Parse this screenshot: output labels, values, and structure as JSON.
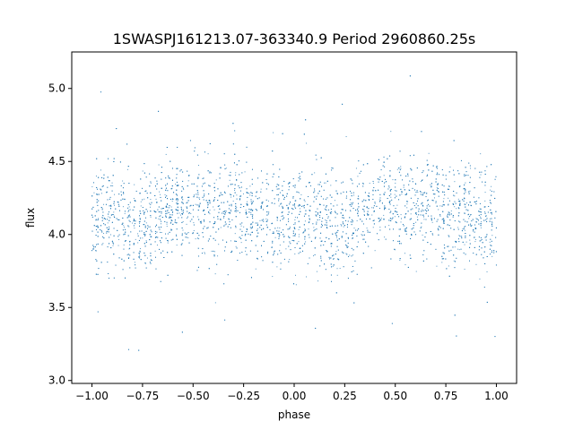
{
  "chart_data": {
    "type": "scatter",
    "title": "1SWASPJ161213.07-363340.9 Period 2960860.25s",
    "xlabel": "phase",
    "ylabel": "flux",
    "xlim": [
      -1.1,
      1.1
    ],
    "ylim": [
      2.98,
      5.25
    ],
    "x_ticks": [
      -1.0,
      -0.75,
      -0.5,
      -0.25,
      0.0,
      0.25,
      0.5,
      0.75,
      1.0
    ],
    "x_tick_labels": [
      "−1.00",
      "−0.75",
      "−0.50",
      "−0.25",
      "0.00",
      "0.25",
      "0.50",
      "0.75",
      "1.00"
    ],
    "y_ticks": [
      3.0,
      3.5,
      4.0,
      4.5,
      5.0
    ],
    "y_tick_labels": [
      "3.0",
      "3.5",
      "4.0",
      "4.5",
      "5.0"
    ],
    "grid": false,
    "legend": "none",
    "marker_color": "#1f77b4",
    "series": [
      {
        "phase_range": [
          -1.0,
          1.0
        ],
        "points_shown_approx": 12000,
        "folded_period_repeat": true,
        "typical_flux_range": [
          3.6,
          4.6
        ],
        "mean_flux_profile": [
          {
            "phase": -1.0,
            "flux": 4.05
          },
          {
            "phase": -0.9,
            "flux": 4.15
          },
          {
            "phase": -0.8,
            "flux": 4.0
          },
          {
            "phase": -0.7,
            "flux": 4.1
          },
          {
            "phase": -0.6,
            "flux": 4.2
          },
          {
            "phase": -0.5,
            "flux": 4.2
          },
          {
            "phase": -0.4,
            "flux": 4.15
          },
          {
            "phase": -0.3,
            "flux": 4.2
          },
          {
            "phase": -0.2,
            "flux": 4.1
          },
          {
            "phase": -0.1,
            "flux": 4.15
          },
          {
            "phase": 0.0,
            "flux": 4.1
          },
          {
            "phase": 0.1,
            "flux": 4.15
          },
          {
            "phase": 0.2,
            "flux": 4.0
          },
          {
            "phase": 0.3,
            "flux": 4.1
          },
          {
            "phase": 0.4,
            "flux": 4.2
          },
          {
            "phase": 0.5,
            "flux": 4.2
          },
          {
            "phase": 0.6,
            "flux": 4.15
          },
          {
            "phase": 0.7,
            "flux": 4.2
          },
          {
            "phase": 0.8,
            "flux": 4.1
          },
          {
            "phase": 0.9,
            "flux": 4.15
          },
          {
            "phase": 1.0,
            "flux": 4.05
          }
        ]
      }
    ]
  }
}
